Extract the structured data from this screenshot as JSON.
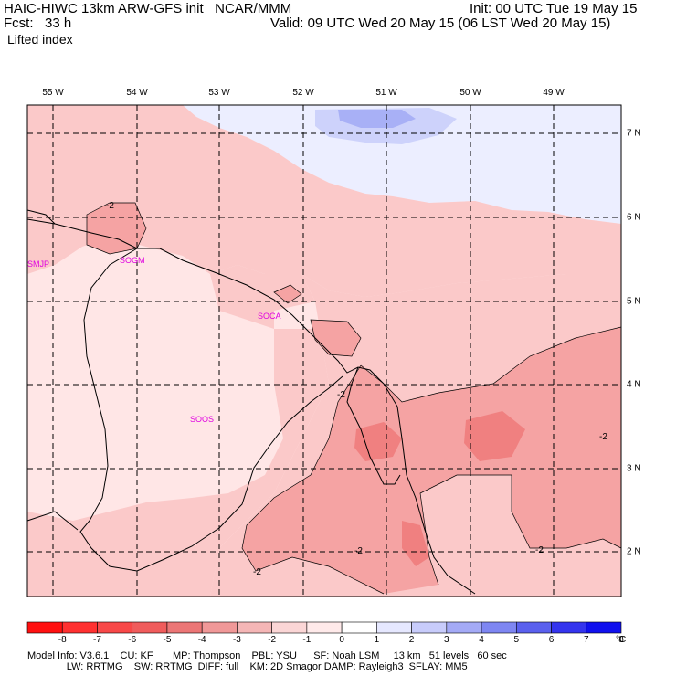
{
  "header": {
    "line1_left": "HAIC-HIWC 13km ARW-GFS init   NCAR/MMM",
    "line1_right": "Init: 00 UTC Tue 19 May 15",
    "line2_left": "Fcst:   33 h",
    "line2_right": "Valid: 09 UTC Wed 20 May 15 (06 LST Wed 20 May 15)",
    "field": "Lifted index"
  },
  "map": {
    "lon_labels": [
      "55 W",
      "54 W",
      "53 W",
      "52 W",
      "51 W",
      "50 W",
      "49 W"
    ],
    "lat_labels": [
      "7 N",
      "6 N",
      "5 N",
      "4 N",
      "3 N",
      "2 N"
    ],
    "stations": [
      "SMJP",
      "SOGM",
      "SOCA",
      "SOOS"
    ],
    "contour_labels": [
      "-2",
      "-2",
      "-2",
      "-2",
      "-2",
      "-2"
    ],
    "colors": {
      "neg1": "#ffe6e6",
      "neg2": "#fbc9c9",
      "neg3": "#f5a3a3",
      "neg4": "#f08080",
      "pos1": "#eceeff",
      "pos2": "#cdd2fb",
      "pos3": "#a8b0f6"
    }
  },
  "colorbar": {
    "ticks": [
      "-8",
      "-7",
      "-6",
      "-5",
      "-4",
      "-3",
      "-2",
      "-1",
      "0",
      "1",
      "2",
      "3",
      "4",
      "5",
      "6",
      "7",
      "8"
    ],
    "unit": "°C",
    "colors": [
      "#ff1010",
      "#ff3030",
      "#f84848",
      "#f05c5c",
      "#ec7676",
      "#f09898",
      "#f5b6b6",
      "#fbd6d6",
      "#ffeaea",
      "#ffffff",
      "#e6e8ff",
      "#c8ccfb",
      "#a4aaf6",
      "#7e86f2",
      "#5a60ee",
      "#3434ee",
      "#1010ee"
    ]
  },
  "footer": {
    "line1": "Model Info: V3.6.1    CU: KF       MP: Thompson    PBL: YSU      SF: Noah LSM     13 km   51 levels   60 sec",
    "line2": "              LW: RRTMG    SW: RRTMG  DIFF: full    KM: 2D Smagor DAMP: Rayleigh3  SFLAY: MM5"
  }
}
